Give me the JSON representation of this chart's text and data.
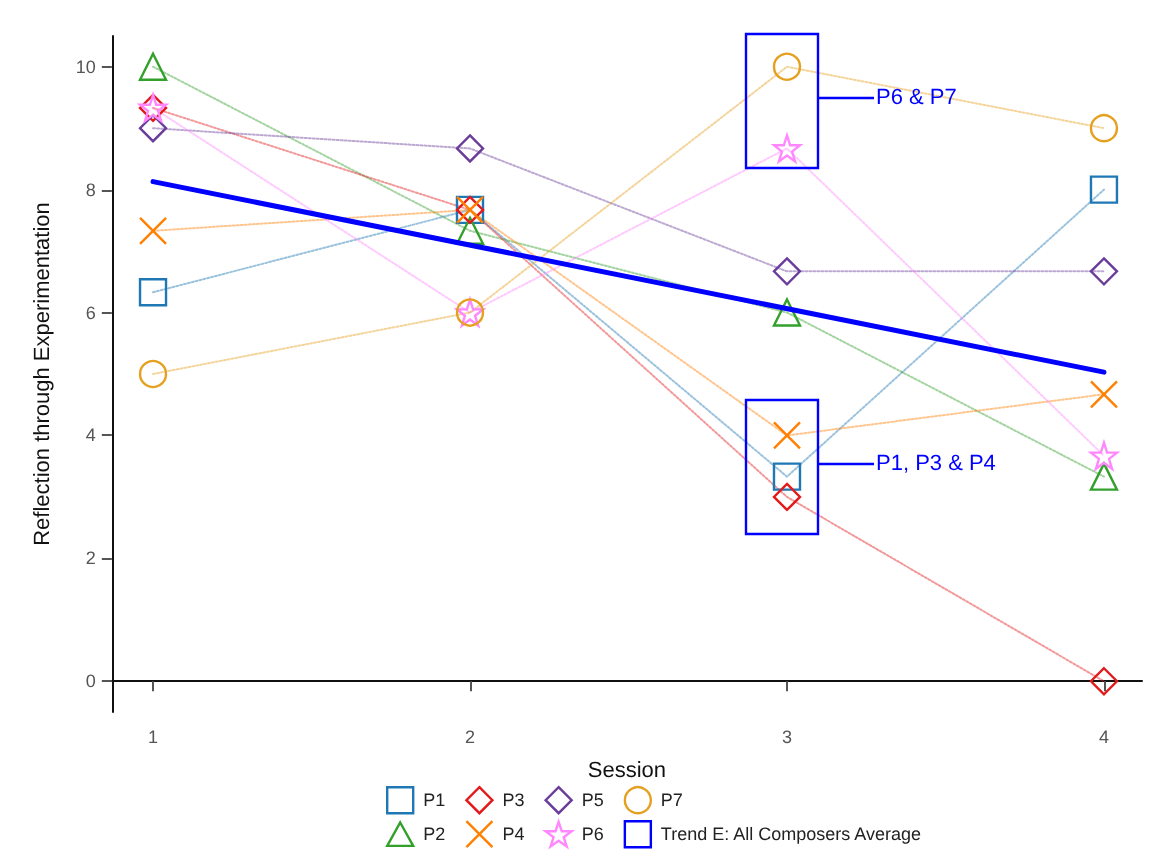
{
  "chart_data": {
    "type": "line",
    "xlabel": "Session",
    "ylabel": "Reflection through Experimentation",
    "x": [
      1,
      2,
      3,
      4
    ],
    "xlim": [
      0.87,
      4.12
    ],
    "xticks": [
      1,
      2,
      3,
      4
    ],
    "ylim": [
      -0.5,
      10.5
    ],
    "yticks": [
      0,
      2,
      4,
      6,
      8,
      10
    ],
    "grid": false,
    "legend": "bottom",
    "line_style": "dotted",
    "series": [
      {
        "name": "P1",
        "color": "#1f78b4",
        "marker": "square",
        "values": [
          6.33,
          7.67,
          3.33,
          8
        ]
      },
      {
        "name": "P2",
        "color": "#33a02c",
        "marker": "triangle",
        "values": [
          10,
          7.33,
          6,
          3.33
        ]
      },
      {
        "name": "P3",
        "color": "#e31a1c",
        "marker": "diamond",
        "values": [
          9.33,
          7.67,
          3,
          0
        ]
      },
      {
        "name": "P4",
        "color": "#ff7f00",
        "marker": "cross",
        "values": [
          7.33,
          7.67,
          4,
          4.67
        ]
      },
      {
        "name": "P5",
        "color": "#6a3d9a",
        "marker": "diamond",
        "values": [
          9,
          8.67,
          6.67,
          6.67
        ]
      },
      {
        "name": "P6",
        "color": "#ff88ff",
        "marker": "star",
        "values": [
          9.33,
          6,
          8.67,
          3.67
        ]
      },
      {
        "name": "P7",
        "color": "#e6a01f",
        "marker": "circle",
        "values": [
          5,
          6,
          10,
          9
        ]
      },
      {
        "name": "Trend E: All Composers Average",
        "color": "#0000ff",
        "marker": "none",
        "line_style": "solid",
        "x": [
          1,
          4
        ],
        "values": [
          8.13,
          5.03
        ]
      }
    ],
    "annotations": [
      "P6 & P7",
      "P1, P3 & P4"
    ]
  }
}
